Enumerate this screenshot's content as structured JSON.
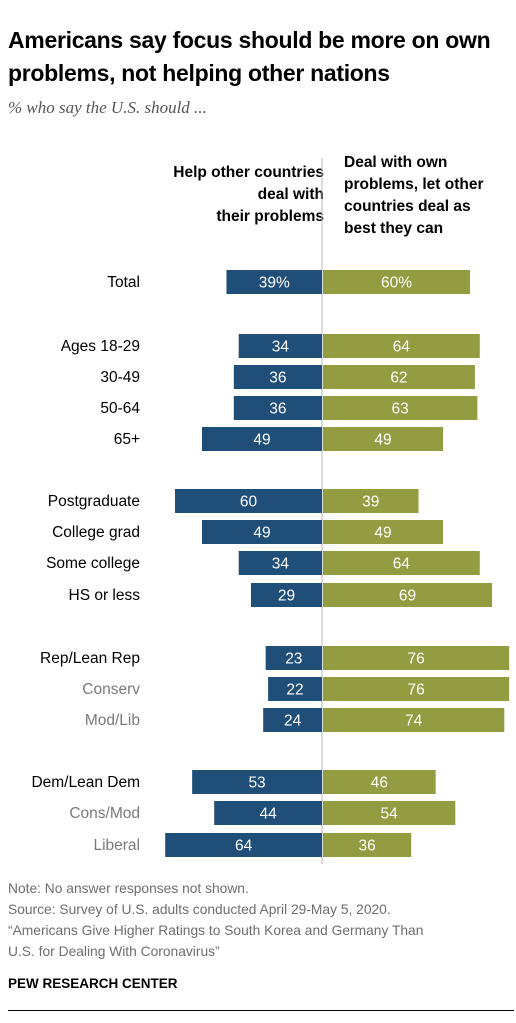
{
  "title": "Americans say focus should be more on own problems, not helping other nations",
  "subtitle": "% who say the U.S. should ...",
  "chart_data": {
    "type": "bar",
    "orientation": "diverging-horizontal",
    "series": [
      {
        "name": "Help other countries deal with their problems",
        "color": "#1f4e79"
      },
      {
        "name": "Deal with own problems, let other countries deal as best they can",
        "color": "#949c42"
      }
    ],
    "rows": [
      {
        "label": "Total",
        "help": 39,
        "own": 60,
        "help_label": "39%",
        "own_label": "60%",
        "sub": false
      },
      {
        "label": "Ages 18-29",
        "help": 34,
        "own": 64,
        "help_label": "34",
        "own_label": "64",
        "sub": false
      },
      {
        "label": "30-49",
        "help": 36,
        "own": 62,
        "help_label": "36",
        "own_label": "62",
        "sub": false
      },
      {
        "label": "50-64",
        "help": 36,
        "own": 63,
        "help_label": "36",
        "own_label": "63",
        "sub": false
      },
      {
        "label": "65+",
        "help": 49,
        "own": 49,
        "help_label": "49",
        "own_label": "49",
        "sub": false
      },
      {
        "label": "Postgraduate",
        "help": 60,
        "own": 39,
        "help_label": "60",
        "own_label": "39",
        "sub": false
      },
      {
        "label": "College grad",
        "help": 49,
        "own": 49,
        "help_label": "49",
        "own_label": "49",
        "sub": false
      },
      {
        "label": "Some college",
        "help": 34,
        "own": 64,
        "help_label": "34",
        "own_label": "64",
        "sub": false
      },
      {
        "label": "HS or less",
        "help": 29,
        "own": 69,
        "help_label": "29",
        "own_label": "69",
        "sub": false
      },
      {
        "label": "Rep/Lean Rep",
        "help": 23,
        "own": 76,
        "help_label": "23",
        "own_label": "76",
        "sub": false
      },
      {
        "label": "Conserv",
        "help": 22,
        "own": 76,
        "help_label": "22",
        "own_label": "76",
        "sub": true
      },
      {
        "label": "Mod/Lib",
        "help": 24,
        "own": 74,
        "help_label": "24",
        "own_label": "74",
        "sub": true
      },
      {
        "label": "Dem/Lean Dem",
        "help": 53,
        "own": 46,
        "help_label": "53",
        "own_label": "46",
        "sub": false
      },
      {
        "label": "Cons/Mod",
        "help": 44,
        "own": 54,
        "help_label": "44",
        "own_label": "54",
        "sub": true
      },
      {
        "label": "Liberal",
        "help": 64,
        "own": 36,
        "help_label": "64",
        "own_label": "36",
        "sub": true
      }
    ]
  },
  "notes": [
    "Note: No answer responses not shown.",
    "Source: Survey of U.S. adults conducted April 29-May 5, 2020.",
    "“Americans Give Higher Ratings to South Korea and Germany Than",
    "U.S. for Dealing With Coronavirus”"
  ],
  "footer": "PEW RESEARCH CENTER",
  "colors": {
    "help": "#1f4e79",
    "own": "#949c42",
    "divider": "#b8b8b8",
    "sub_label": "#7a7a7a"
  }
}
